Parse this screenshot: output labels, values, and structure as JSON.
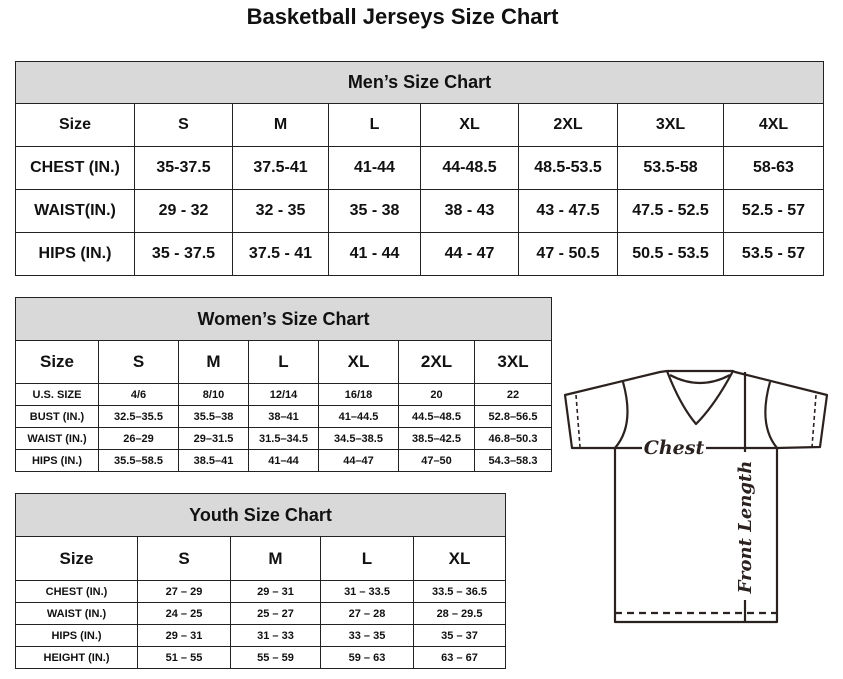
{
  "title": "Basketball Jerseys Size Chart",
  "men": {
    "caption": "Men’s Size Chart",
    "header": [
      "Size",
      "S",
      "M",
      "L",
      "XL",
      "2XL",
      "3XL",
      "4XL"
    ],
    "rows": [
      [
        "CHEST (IN.)",
        "35-37.5",
        "37.5-41",
        "41-44",
        "44-48.5",
        "48.5-53.5",
        "53.5-58",
        "58-63"
      ],
      [
        "WAIST(IN.)",
        "29 - 32",
        "32 - 35",
        "35 - 38",
        "38 - 43",
        "43 - 47.5",
        "47.5 - 52.5",
        "52.5 - 57"
      ],
      [
        "HIPS (IN.)",
        "35 - 37.5",
        "37.5 - 41",
        "41 - 44",
        "44 - 47",
        "47 - 50.5",
        "50.5 - 53.5",
        "53.5 - 57"
      ]
    ]
  },
  "women": {
    "caption": "Women’s Size Chart",
    "header": [
      "Size",
      "S",
      "M",
      "L",
      "XL",
      "2XL",
      "3XL"
    ],
    "rows": [
      [
        "U.S.  SIZE",
        "4/6",
        "8/10",
        "12/14",
        "16/18",
        "20",
        "22"
      ],
      [
        "BUST  (IN.)",
        "32.5–35.5",
        "35.5–38",
        "38–41",
        "41–44.5",
        "44.5–48.5",
        "52.8–56.5"
      ],
      [
        "WAIST  (IN.)",
        "26–29",
        "29–31.5",
        "31.5–34.5",
        "34.5–38.5",
        "38.5–42.5",
        "46.8–50.3"
      ],
      [
        "HIPS  (IN.)",
        "35.5–58.5",
        "38.5–41",
        "41–44",
        "44–47",
        "47–50",
        "54.3–58.3"
      ]
    ]
  },
  "youth": {
    "caption": "Youth Size Chart",
    "header": [
      "Size",
      "S",
      "M",
      "L",
      "XL"
    ],
    "rows": [
      [
        "CHEST  (IN.)",
        "27  –  29",
        "29  –  31",
        "31  –  33.5",
        "33.5  –  36.5"
      ],
      [
        "WAIST  (IN.)",
        "24  –  25",
        "25  –  27",
        "27  –  28",
        "28  –  29.5"
      ],
      [
        "HIPS  (IN.)",
        "29  –  31",
        "31  –  33",
        "33  –  35",
        "35  –  37"
      ],
      [
        "HEIGHT  (IN.)",
        "51  –  55",
        "55  –  59",
        "59  –  63",
        "63  –  67"
      ]
    ]
  },
  "diagram": {
    "chest_label": "Chest",
    "length_label": "Front Length",
    "line_color": "#2b2220"
  }
}
